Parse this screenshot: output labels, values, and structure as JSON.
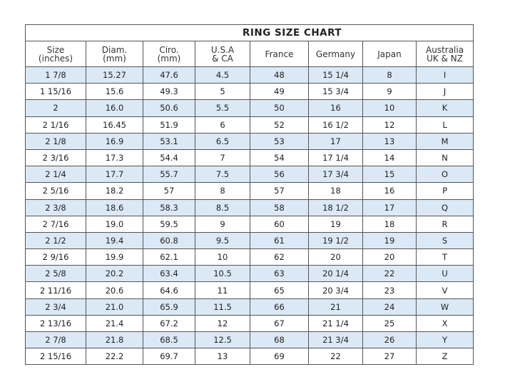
{
  "title": "RING SIZE  CHART",
  "columns": [
    [
      "Size",
      "(inches)"
    ],
    [
      "Diam.",
      "(mm)"
    ],
    [
      "Ciro.",
      "(mm)"
    ],
    [
      "U.S.A",
      "& CA"
    ],
    [
      "France",
      ""
    ],
    [
      "Germany",
      ""
    ],
    [
      "Japan",
      ""
    ],
    [
      "Australia",
      "UK & NZ"
    ]
  ],
  "rows": [
    [
      "1 7/8",
      "15.27",
      "47.6",
      "4.5",
      "48",
      "15 1/4",
      "8",
      "I"
    ],
    [
      "1 15/16",
      "15.6",
      "49.3",
      "5",
      "49",
      "15 3/4",
      "9",
      "J"
    ],
    [
      "2",
      "16.0",
      "50.6",
      "5.5",
      "50",
      "16",
      "10",
      "K"
    ],
    [
      "2 1/16",
      "16.45",
      "51.9",
      "6",
      "52",
      "16 1/2",
      "12",
      "L"
    ],
    [
      "2 1/8",
      "16.9",
      "53.1",
      "6.5",
      "53",
      "17",
      "13",
      "M"
    ],
    [
      "2 3/16",
      "17.3",
      "54.4",
      "7",
      "54",
      "17 1/4",
      "14",
      "N"
    ],
    [
      "2 1/4",
      "17.7",
      "55.7",
      "7.5",
      "56",
      "17 3/4",
      "15",
      "O"
    ],
    [
      "2 5/16",
      "18.2",
      "57",
      "8",
      "57",
      "18",
      "16",
      "P"
    ],
    [
      "2 3/8",
      "18.6",
      "58.3",
      "8.5",
      "58",
      "18 1/2",
      "17",
      "Q"
    ],
    [
      "2 7/16",
      "19.0",
      "59.5",
      "9",
      "60",
      "19",
      "18",
      "R"
    ],
    [
      "2 1/2",
      "19.4",
      "60.8",
      "9.5",
      "61",
      "19 1/2",
      "19",
      "S"
    ],
    [
      "2 9/16",
      "19.9",
      "62.1",
      "10",
      "62",
      "20",
      "20",
      "T"
    ],
    [
      "2 5/8",
      "20.2",
      "63.4",
      "10.5",
      "63",
      "20 1/4",
      "22",
      "U"
    ],
    [
      "2 11/16",
      "20.6",
      "64.6",
      "11",
      "65",
      "20 3/4",
      "23",
      "V"
    ],
    [
      "2 3/4",
      "21.0",
      "65.9",
      "11.5",
      "66",
      "21",
      "24",
      "W"
    ],
    [
      "2 13/16",
      "21.4",
      "67.2",
      "12",
      "67",
      "21 1/4",
      "25",
      "X"
    ],
    [
      "2 7/8",
      "21.8",
      "68.5",
      "12.5",
      "68",
      "21 3/4",
      "26",
      "Y"
    ],
    [
      "2 15/16",
      "22.2",
      "69.7",
      "13",
      "69",
      "22",
      "27",
      "Z"
    ]
  ],
  "colors": {
    "alt_row": "#dbe9f6",
    "border": "#555555"
  }
}
